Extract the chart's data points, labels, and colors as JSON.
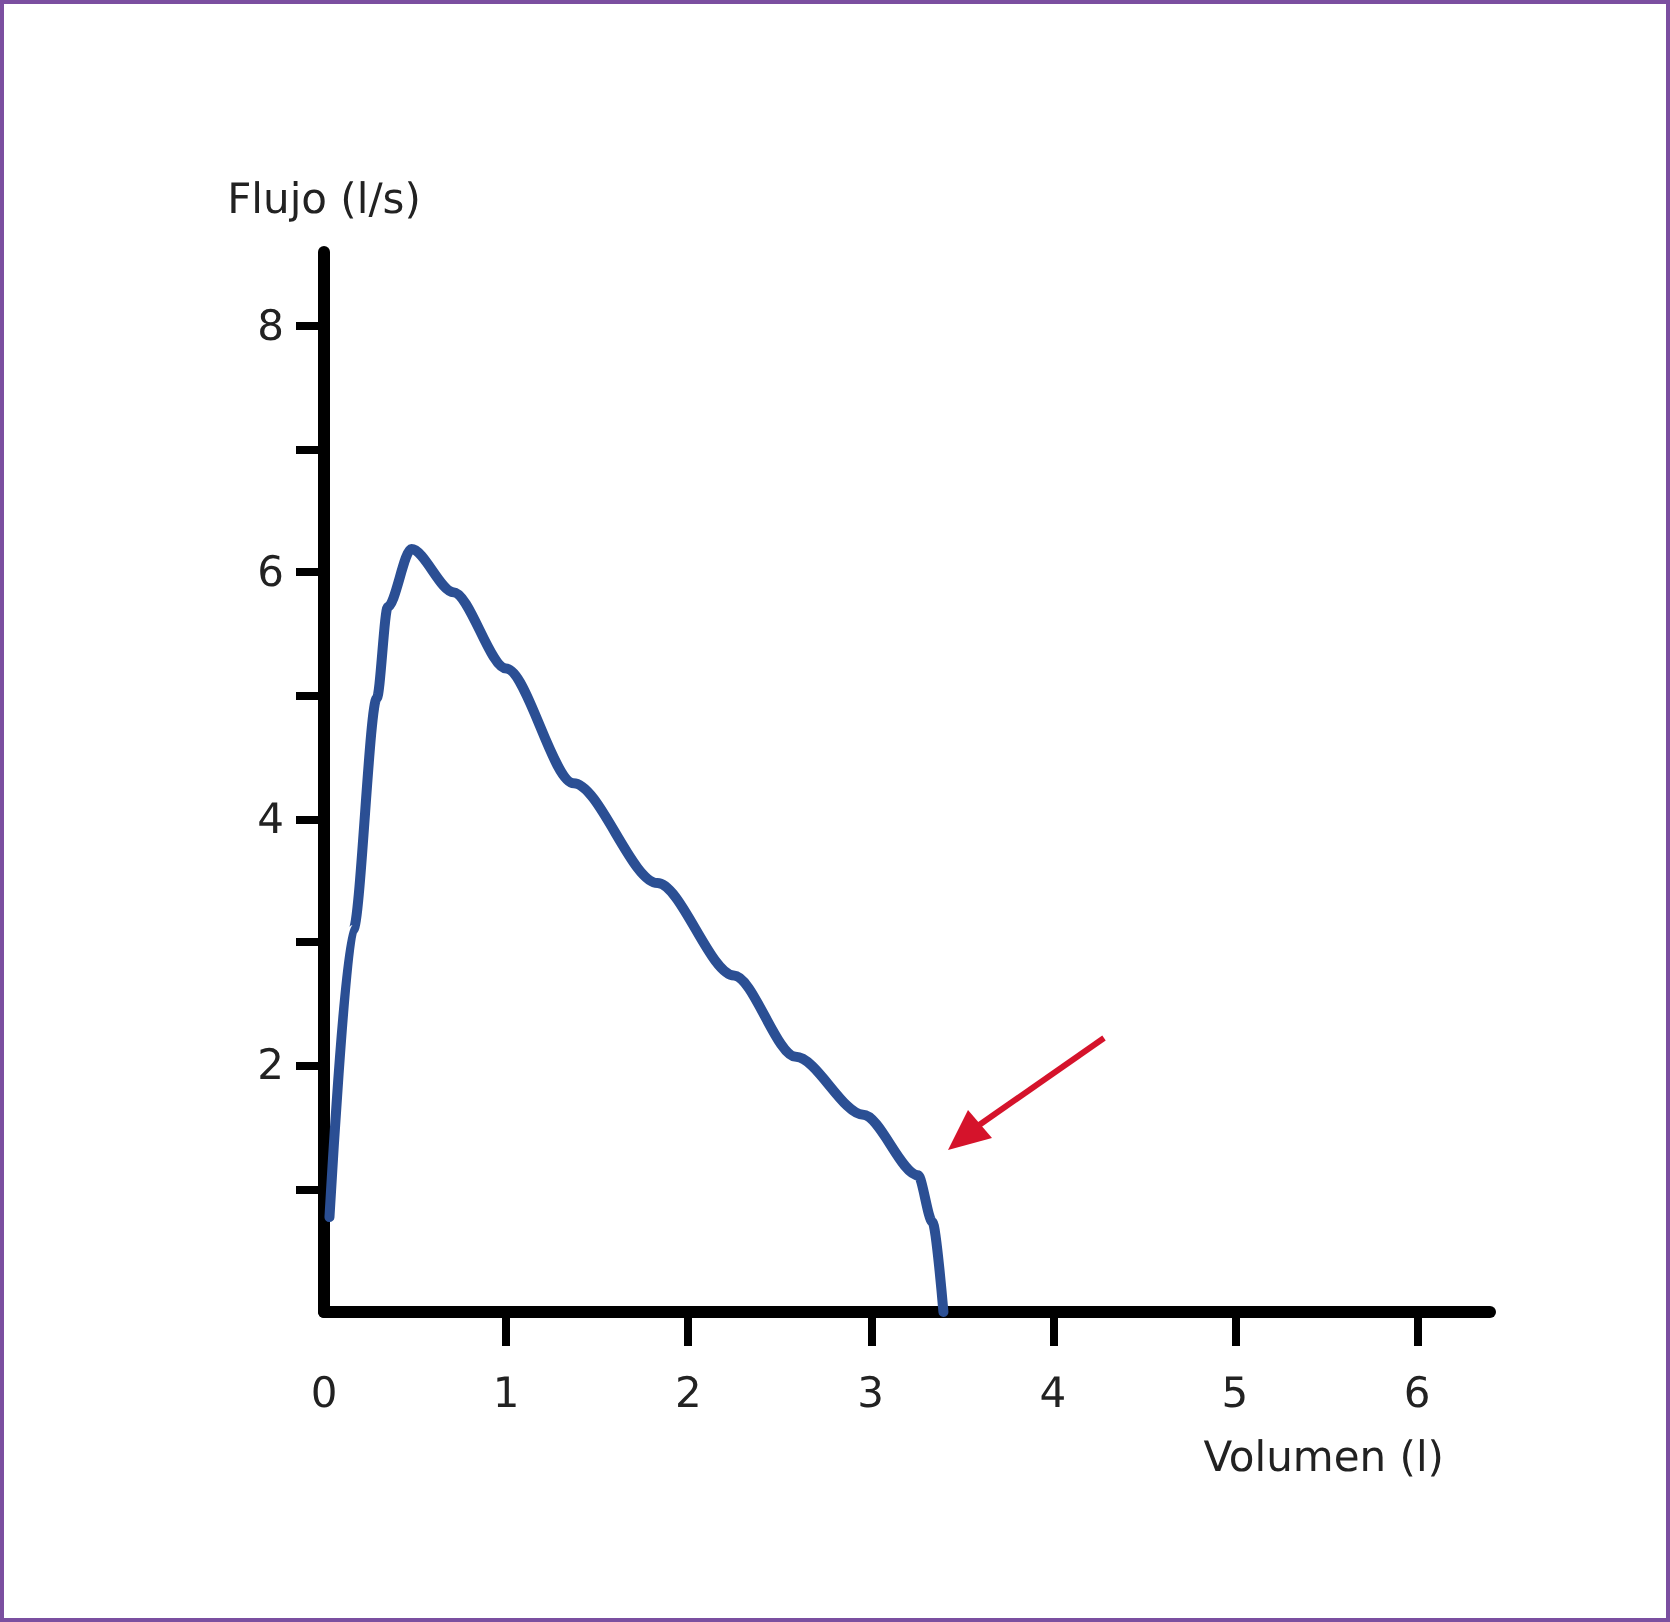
{
  "chart_data": {
    "type": "line",
    "xlabel": "Volumen (l)",
    "ylabel": "Flujo (l/s)",
    "x": [
      0.03,
      0.16,
      0.29,
      0.35,
      0.48,
      0.71,
      1.0,
      1.37,
      1.83,
      2.25,
      2.59,
      2.96,
      3.26,
      3.34,
      3.4
    ],
    "series": [
      {
        "color": "#2b4f94",
        "values": [
          0.77,
          3.1,
          4.98,
          5.72,
          6.19,
          5.84,
          5.22,
          4.29,
          3.48,
          2.73,
          2.07,
          1.6,
          1.11,
          0.73,
          0
        ]
      }
    ],
    "xlim": [
      0,
      6.4
    ],
    "ylim": [
      0,
      8.6
    ],
    "xticks": [
      0,
      1,
      2,
      3,
      4,
      5,
      6
    ],
    "yticks": [
      {
        "value": 1,
        "label": null
      },
      2,
      {
        "value": 3,
        "label": null
      },
      4,
      {
        "value": 5,
        "label": null
      },
      6,
      {
        "value": 7,
        "label": null
      },
      8
    ],
    "grid": false,
    "marker": "none",
    "line_style": "solid"
  }
}
